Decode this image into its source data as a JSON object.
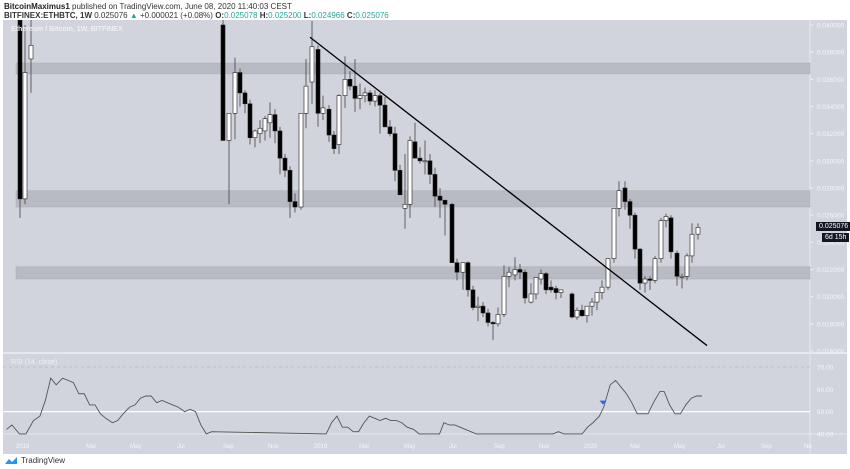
{
  "header": {
    "author": "BitcoinMaximus1",
    "published": "published on TradingView.com, June 08, 2020 11:40:03 CEST",
    "symbol": "BITFINEX:ETHBTC, 1W",
    "last": "0.025076",
    "change_arrow": "▲",
    "change": "+0.000021 (+0.08%)",
    "o_label": "O:",
    "o": "0.025078",
    "h_label": "H:",
    "h": "0.025200",
    "l_label": "L:",
    "l": "0.024966",
    "c_label": "C:",
    "c": "0.025076"
  },
  "chart": {
    "legend": "Ethereum / Bitcoin, 1W, BITFINEX",
    "rsi_legend": "RSI (14, close)",
    "price_tag": "0.025076",
    "countdown": "6d 15h"
  },
  "footer": {
    "brand": "TradingView"
  },
  "colors": {
    "background": "#d1d4dc",
    "candle_up": "#ffffff",
    "candle_down": "#000000",
    "zone": "#b8bbc3",
    "rsi_line": "#555555",
    "marker": "#2962ff",
    "accent": "#26a69a"
  },
  "chart_data": [
    {
      "type": "candlestick",
      "title": "Ethereum / Bitcoin, 1W, BITFINEX",
      "ylim": [
        0.016,
        0.04
      ],
      "y_ticks": [
        "0.040000",
        "0.038000",
        "0.036000",
        "0.034000",
        "0.032000",
        "0.030000",
        "0.028000",
        "0.026000",
        "0.024000",
        "0.022000",
        "0.020000",
        "0.018000",
        "0.016000"
      ],
      "x_ticks": [
        "2018",
        "Mar",
        "May",
        "Jul",
        "Sep",
        "Nov",
        "2019",
        "Mar",
        "May",
        "Jul",
        "Sep",
        "Nov",
        "2020",
        "Mar",
        "May",
        "Jul",
        "Sep",
        "No"
      ],
      "zones": [
        {
          "from": 0.0364,
          "to": 0.0372
        },
        {
          "from": 0.0266,
          "to": 0.0278
        },
        {
          "from": 0.0213,
          "to": 0.0222
        }
      ],
      "trendline": {
        "from": [
          310,
          0.0391
        ],
        "to": [
          707,
          0.0164
        ]
      },
      "candles": [
        {
          "x": 20,
          "o": 0.045,
          "h": 0.047,
          "l": 0.0258,
          "c": 0.0272
        },
        {
          "x": 25,
          "o": 0.0272,
          "h": 0.04,
          "l": 0.0268,
          "c": 0.0365
        },
        {
          "x": 31,
          "o": 0.0375,
          "h": 0.041,
          "l": 0.035,
          "c": 0.0385
        },
        {
          "x": 223,
          "o": 0.04,
          "h": 0.041,
          "l": 0.0318,
          "c": 0.0315
        },
        {
          "x": 229,
          "o": 0.0315,
          "h": 0.033,
          "l": 0.0268,
          "c": 0.0335
        },
        {
          "x": 235,
          "o": 0.0335,
          "h": 0.0376,
          "l": 0.0316,
          "c": 0.0365
        },
        {
          "x": 240,
          "o": 0.0365,
          "h": 0.0368,
          "l": 0.034,
          "c": 0.035
        },
        {
          "x": 245,
          "o": 0.035,
          "h": 0.0352,
          "l": 0.0335,
          "c": 0.0342
        },
        {
          "x": 250,
          "o": 0.0342,
          "h": 0.0345,
          "l": 0.0312,
          "c": 0.0317
        },
        {
          "x": 255,
          "o": 0.0317,
          "h": 0.0323,
          "l": 0.031,
          "c": 0.0322
        },
        {
          "x": 260,
          "o": 0.032,
          "h": 0.033,
          "l": 0.0313,
          "c": 0.0324
        },
        {
          "x": 265,
          "o": 0.0322,
          "h": 0.0333,
          "l": 0.0315,
          "c": 0.0331
        },
        {
          "x": 270,
          "o": 0.0328,
          "h": 0.0343,
          "l": 0.0317,
          "c": 0.0334
        },
        {
          "x": 275,
          "o": 0.0334,
          "h": 0.0338,
          "l": 0.0313,
          "c": 0.0322
        },
        {
          "x": 280,
          "o": 0.0322,
          "h": 0.0325,
          "l": 0.029,
          "c": 0.0302
        },
        {
          "x": 285,
          "o": 0.0302,
          "h": 0.0305,
          "l": 0.0288,
          "c": 0.0293
        },
        {
          "x": 290,
          "o": 0.0293,
          "h": 0.0296,
          "l": 0.0258,
          "c": 0.027
        },
        {
          "x": 295,
          "o": 0.027,
          "h": 0.0276,
          "l": 0.0262,
          "c": 0.0266
        },
        {
          "x": 301,
          "o": 0.0266,
          "h": 0.0335,
          "l": 0.0264,
          "c": 0.0335
        },
        {
          "x": 306,
          "o": 0.0335,
          "h": 0.0375,
          "l": 0.0324,
          "c": 0.0355
        },
        {
          "x": 312,
          "o": 0.0358,
          "h": 0.0403,
          "l": 0.0342,
          "c": 0.0384
        },
        {
          "x": 318,
          "o": 0.0382,
          "h": 0.0385,
          "l": 0.0325,
          "c": 0.0335
        },
        {
          "x": 323,
          "o": 0.0335,
          "h": 0.0348,
          "l": 0.033,
          "c": 0.0339
        },
        {
          "x": 329,
          "o": 0.0338,
          "h": 0.0341,
          "l": 0.0314,
          "c": 0.0319
        },
        {
          "x": 334,
          "o": 0.0319,
          "h": 0.0322,
          "l": 0.0305,
          "c": 0.0309
        },
        {
          "x": 339,
          "o": 0.0312,
          "h": 0.0349,
          "l": 0.0305,
          "c": 0.0348
        },
        {
          "x": 345,
          "o": 0.0348,
          "h": 0.0377,
          "l": 0.0339,
          "c": 0.036
        },
        {
          "x": 350,
          "o": 0.036,
          "h": 0.0366,
          "l": 0.0352,
          "c": 0.0355
        },
        {
          "x": 355,
          "o": 0.0355,
          "h": 0.0375,
          "l": 0.0336,
          "c": 0.0346
        },
        {
          "x": 360,
          "o": 0.0346,
          "h": 0.0357,
          "l": 0.0338,
          "c": 0.0348
        },
        {
          "x": 365,
          "o": 0.0348,
          "h": 0.0354,
          "l": 0.0343,
          "c": 0.035
        },
        {
          "x": 370,
          "o": 0.035,
          "h": 0.0352,
          "l": 0.0341,
          "c": 0.0344
        },
        {
          "x": 375,
          "o": 0.0344,
          "h": 0.0352,
          "l": 0.034,
          "c": 0.0348
        },
        {
          "x": 380,
          "o": 0.0348,
          "h": 0.035,
          "l": 0.032,
          "c": 0.0341
        },
        {
          "x": 385,
          "o": 0.0341,
          "h": 0.0347,
          "l": 0.0332,
          "c": 0.0325
        },
        {
          "x": 390,
          "o": 0.0325,
          "h": 0.033,
          "l": 0.0318,
          "c": 0.032
        },
        {
          "x": 395,
          "o": 0.032,
          "h": 0.0325,
          "l": 0.0285,
          "c": 0.0293
        },
        {
          "x": 400,
          "o": 0.0293,
          "h": 0.0297,
          "l": 0.0275,
          "c": 0.0275
        },
        {
          "x": 405,
          "o": 0.0265,
          "h": 0.0305,
          "l": 0.025,
          "c": 0.0268
        },
        {
          "x": 410,
          "o": 0.0268,
          "h": 0.0318,
          "l": 0.0258,
          "c": 0.0315
        },
        {
          "x": 415,
          "o": 0.0314,
          "h": 0.0328,
          "l": 0.0302,
          "c": 0.0302
        },
        {
          "x": 420,
          "o": 0.0302,
          "h": 0.031,
          "l": 0.0298,
          "c": 0.03
        },
        {
          "x": 425,
          "o": 0.03,
          "h": 0.0315,
          "l": 0.029,
          "c": 0.03
        },
        {
          "x": 430,
          "o": 0.03,
          "h": 0.0305,
          "l": 0.0283,
          "c": 0.029
        },
        {
          "x": 435,
          "o": 0.029,
          "h": 0.0295,
          "l": 0.0266,
          "c": 0.0274
        },
        {
          "x": 440,
          "o": 0.0274,
          "h": 0.028,
          "l": 0.0258,
          "c": 0.0271
        },
        {
          "x": 445,
          "o": 0.0271,
          "h": 0.0271,
          "l": 0.0245,
          "c": 0.0268
        },
        {
          "x": 452,
          "o": 0.0268,
          "h": 0.0269,
          "l": 0.0232,
          "c": 0.0225
        },
        {
          "x": 457,
          "o": 0.0225,
          "h": 0.0228,
          "l": 0.0212,
          "c": 0.0218
        },
        {
          "x": 463,
          "o": 0.0218,
          "h": 0.0225,
          "l": 0.0205,
          "c": 0.0225
        },
        {
          "x": 468,
          "o": 0.0225,
          "h": 0.0226,
          "l": 0.02,
          "c": 0.0205
        },
        {
          "x": 473,
          "o": 0.0205,
          "h": 0.0208,
          "l": 0.019,
          "c": 0.0192
        },
        {
          "x": 478,
          "o": 0.0192,
          "h": 0.02,
          "l": 0.0182,
          "c": 0.0193
        },
        {
          "x": 483,
          "o": 0.0193,
          "h": 0.0196,
          "l": 0.0185,
          "c": 0.0188
        },
        {
          "x": 488,
          "o": 0.0188,
          "h": 0.0191,
          "l": 0.0178,
          "c": 0.0181
        },
        {
          "x": 493,
          "o": 0.0181,
          "h": 0.0182,
          "l": 0.0168,
          "c": 0.018
        },
        {
          "x": 498,
          "o": 0.018,
          "h": 0.0192,
          "l": 0.0178,
          "c": 0.0187
        },
        {
          "x": 504,
          "o": 0.0187,
          "h": 0.0223,
          "l": 0.0185,
          "c": 0.0215
        },
        {
          "x": 509,
          "o": 0.0215,
          "h": 0.0222,
          "l": 0.0207,
          "c": 0.0218
        },
        {
          "x": 515,
          "o": 0.0216,
          "h": 0.0229,
          "l": 0.0212,
          "c": 0.022
        },
        {
          "x": 520,
          "o": 0.022,
          "h": 0.0224,
          "l": 0.0213,
          "c": 0.0218
        },
        {
          "x": 525,
          "o": 0.0218,
          "h": 0.022,
          "l": 0.0195,
          "c": 0.0199
        },
        {
          "x": 531,
          "o": 0.0196,
          "h": 0.021,
          "l": 0.0195,
          "c": 0.0202
        },
        {
          "x": 536,
          "o": 0.0202,
          "h": 0.0214,
          "l": 0.0198,
          "c": 0.0214
        },
        {
          "x": 541,
          "o": 0.0213,
          "h": 0.022,
          "l": 0.0209,
          "c": 0.0217
        },
        {
          "x": 546,
          "o": 0.0217,
          "h": 0.0218,
          "l": 0.0202,
          "c": 0.0205
        },
        {
          "x": 551,
          "o": 0.0207,
          "h": 0.0212,
          "l": 0.0203,
          "c": 0.0205
        },
        {
          "x": 556,
          "o": 0.0206,
          "h": 0.0208,
          "l": 0.0198,
          "c": 0.0203
        },
        {
          "x": 561,
          "o": 0.0203,
          "h": 0.0204,
          "l": 0.0199,
          "c": 0.0205
        },
        {
          "x": 572,
          "o": 0.0202,
          "h": 0.0203,
          "l": 0.0184,
          "c": 0.0185
        },
        {
          "x": 577,
          "o": 0.0185,
          "h": 0.0192,
          "l": 0.0183,
          "c": 0.019
        },
        {
          "x": 582,
          "o": 0.019,
          "h": 0.0194,
          "l": 0.0185,
          "c": 0.0186
        },
        {
          "x": 587,
          "o": 0.0186,
          "h": 0.0193,
          "l": 0.0181,
          "c": 0.0193
        },
        {
          "x": 592,
          "o": 0.0193,
          "h": 0.0199,
          "l": 0.0186,
          "c": 0.0196
        },
        {
          "x": 597,
          "o": 0.0196,
          "h": 0.0203,
          "l": 0.019,
          "c": 0.0203
        },
        {
          "x": 602,
          "o": 0.0203,
          "h": 0.0212,
          "l": 0.0198,
          "c": 0.0207
        },
        {
          "x": 608,
          "o": 0.0207,
          "h": 0.0228,
          "l": 0.0205,
          "c": 0.0228
        },
        {
          "x": 614,
          "o": 0.0228,
          "h": 0.0265,
          "l": 0.0225,
          "c": 0.0265
        },
        {
          "x": 619,
          "o": 0.0265,
          "h": 0.0285,
          "l": 0.0259,
          "c": 0.0278
        },
        {
          "x": 625,
          "o": 0.028,
          "h": 0.0285,
          "l": 0.0264,
          "c": 0.027
        },
        {
          "x": 630,
          "o": 0.027,
          "h": 0.0272,
          "l": 0.025,
          "c": 0.026
        },
        {
          "x": 635,
          "o": 0.026,
          "h": 0.0262,
          "l": 0.0228,
          "c": 0.0235
        },
        {
          "x": 640,
          "o": 0.0235,
          "h": 0.0236,
          "l": 0.0205,
          "c": 0.021
        },
        {
          "x": 645,
          "o": 0.021,
          "h": 0.0215,
          "l": 0.0203,
          "c": 0.0213
        },
        {
          "x": 650,
          "o": 0.0213,
          "h": 0.0215,
          "l": 0.0205,
          "c": 0.0212
        },
        {
          "x": 655,
          "o": 0.0212,
          "h": 0.023,
          "l": 0.021,
          "c": 0.0228
        },
        {
          "x": 661,
          "o": 0.0228,
          "h": 0.0258,
          "l": 0.0225,
          "c": 0.0256
        },
        {
          "x": 666,
          "o": 0.0256,
          "h": 0.0261,
          "l": 0.0251,
          "c": 0.0259
        },
        {
          "x": 671,
          "o": 0.0258,
          "h": 0.026,
          "l": 0.0228,
          "c": 0.0233
        },
        {
          "x": 677,
          "o": 0.0232,
          "h": 0.0234,
          "l": 0.0208,
          "c": 0.0215
        },
        {
          "x": 682,
          "o": 0.0215,
          "h": 0.0217,
          "l": 0.0206,
          "c": 0.0215
        },
        {
          "x": 687,
          "o": 0.0215,
          "h": 0.0232,
          "l": 0.0212,
          "c": 0.023
        },
        {
          "x": 692,
          "o": 0.023,
          "h": 0.0254,
          "l": 0.0225,
          "c": 0.0246
        },
        {
          "x": 698,
          "o": 0.0246,
          "h": 0.0254,
          "l": 0.0242,
          "c": 0.0251
        }
      ]
    },
    {
      "type": "line",
      "title": "RSI (14, close)",
      "ylim": [
        40,
        70
      ],
      "y_ticks": [
        "70.00",
        "60.00",
        "50.00",
        "40.00"
      ],
      "reference_line": 50,
      "points": [
        [
          6,
          42
        ],
        [
          11,
          44
        ],
        [
          18,
          40
        ],
        [
          24,
          40
        ],
        [
          31,
          46
        ],
        [
          37,
          48
        ],
        [
          42,
          55
        ],
        [
          47,
          65
        ],
        [
          52,
          62
        ],
        [
          58,
          65
        ],
        [
          63,
          64
        ],
        [
          68,
          63
        ],
        [
          73,
          58
        ],
        [
          78,
          58
        ],
        [
          83,
          53
        ],
        [
          88,
          53
        ],
        [
          93,
          49
        ],
        [
          98,
          47
        ],
        [
          104,
          45
        ],
        [
          109,
          46
        ],
        [
          114,
          49
        ],
        [
          120,
          52
        ],
        [
          125,
          53
        ],
        [
          130,
          56
        ],
        [
          135,
          57
        ],
        [
          140,
          57
        ],
        [
          145,
          54
        ],
        [
          150,
          55
        ],
        [
          155,
          54
        ],
        [
          160,
          53
        ],
        [
          165,
          52
        ],
        [
          171,
          50
        ],
        [
          176,
          51
        ],
        [
          181,
          50
        ],
        [
          186,
          44
        ],
        [
          191,
          40
        ],
        [
          196,
          41
        ],
        [
          302,
          40
        ],
        [
          307,
          45
        ],
        [
          312,
          48
        ],
        [
          317,
          43
        ],
        [
          322,
          43
        ],
        [
          327,
          41
        ],
        [
          332,
          41
        ],
        [
          337,
          45
        ],
        [
          342,
          48
        ],
        [
          347,
          47
        ],
        [
          352,
          46
        ],
        [
          357,
          47
        ],
        [
          362,
          46
        ],
        [
          367,
          46
        ],
        [
          372,
          45
        ],
        [
          377,
          43
        ],
        [
          383,
          42
        ],
        [
          388,
          40
        ],
        [
          407,
          40
        ],
        [
          411,
          45
        ],
        [
          416,
          44
        ],
        [
          421,
          44
        ],
        [
          426,
          43
        ],
        [
          431,
          42
        ],
        [
          436,
          41
        ],
        [
          441,
          40
        ],
        [
          512,
          40
        ],
        [
          517,
          41
        ],
        [
          522,
          40
        ],
        [
          539,
          40
        ],
        [
          544,
          43
        ],
        [
          549,
          45
        ],
        [
          555,
          48
        ],
        [
          559,
          52
        ],
        [
          565,
          62
        ],
        [
          570,
          64
        ],
        [
          575,
          61
        ],
        [
          580,
          58
        ],
        [
          585,
          54
        ],
        [
          590,
          49
        ],
        [
          595,
          49
        ],
        [
          600,
          49
        ],
        [
          605,
          54
        ],
        [
          611,
          59
        ],
        [
          615,
          59
        ],
        [
          620,
          53
        ],
        [
          625,
          49
        ],
        [
          630,
          49
        ],
        [
          635,
          53
        ],
        [
          640,
          56
        ],
        [
          645,
          57
        ],
        [
          650,
          57
        ]
      ],
      "marker": {
        "x": 603,
        "value": 54,
        "shape": "down-triangle",
        "color": "#2962ff"
      }
    }
  ]
}
